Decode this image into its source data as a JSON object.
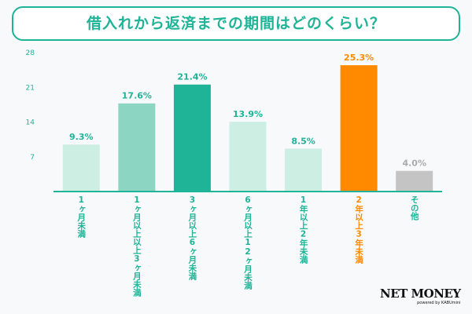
{
  "chart_data": {
    "type": "bar",
    "title": "借入れから返済までの期間はどのくらい？",
    "categories": [
      "1ヶ月未満",
      "1ヶ月以上以上3ヶ月未満",
      "3ヶ月以上6ヶ月未満",
      "6ヶ月以上12ヶ月未満",
      "1年以上2年未満",
      "2年以上3年未満",
      "その他"
    ],
    "values": [
      9.3,
      17.6,
      21.4,
      13.9,
      8.5,
      25.3,
      4.0
    ],
    "value_labels": [
      "9.3%",
      "17.6%",
      "21.4%",
      "13.9%",
      "8.5%",
      "25.3%",
      "4.0%"
    ],
    "colors": [
      "#cdeee3",
      "#8dd5c3",
      "#1fb497",
      "#cdeee3",
      "#cdeee3",
      "#ff8a00",
      "#c4c4c4"
    ],
    "label_colors": [
      "#1fb497",
      "#1fb497",
      "#1fb497",
      "#1fb497",
      "#1fb497",
      "#ff8a00",
      "#1fb497"
    ],
    "value_label_colors": [
      "#1fb497",
      "#1fb497",
      "#1fb497",
      "#1fb497",
      "#1fb497",
      "#ff8a00",
      "#aaaaaa"
    ],
    "yticks": [
      7,
      14,
      21,
      28
    ],
    "ylim": [
      0,
      28
    ],
    "xlabel": "",
    "ylabel": "",
    "grid": false
  },
  "logo": {
    "name": "NET MONEY",
    "tagline": "powered by KABUmini"
  }
}
